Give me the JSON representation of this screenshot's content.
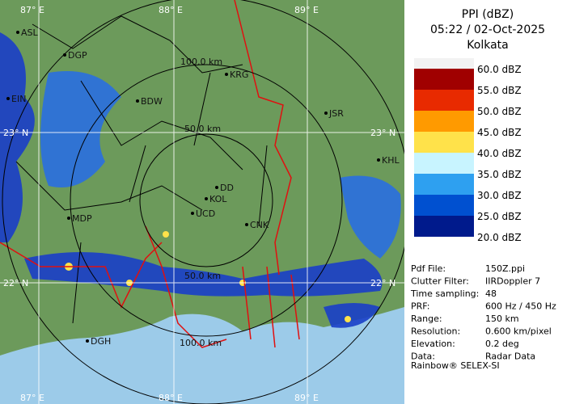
{
  "header": {
    "product": "PPI (dBZ)",
    "time": "05:22 / 02-Oct-2025",
    "site": "Kolkata"
  },
  "legend": [
    {
      "label": "60.0 dBZ",
      "color": "#f2f2f2"
    },
    {
      "label": "55.0 dBZ",
      "color": "#a00000"
    },
    {
      "label": "50.0 dBZ",
      "color": "#e82a00"
    },
    {
      "label": "45.0 dBZ",
      "color": "#ff9a00"
    },
    {
      "label": "40.0 dBZ",
      "color": "#ffe24a"
    },
    {
      "label": "35.0 dBZ",
      "color": "#c8f4ff"
    },
    {
      "label": "30.0 dBZ",
      "color": "#2ea0f0"
    },
    {
      "label": "25.0 dBZ",
      "color": "#0050d0"
    },
    {
      "label": "20.0 dBZ",
      "color": "#001a8c"
    }
  ],
  "info": [
    {
      "label": "Pdf File:",
      "value": "150Z.ppi"
    },
    {
      "label": "Clutter Filter:",
      "value": "IIRDoppler 7"
    },
    {
      "label": "Time sampling:",
      "value": "48"
    },
    {
      "label": "PRF:",
      "value": "600 Hz / 450 Hz"
    },
    {
      "label": "Range:",
      "value": "150 km"
    },
    {
      "label": "Resolution:",
      "value": "0.600 km/pixel"
    },
    {
      "label": "Elevation:",
      "value": "0.2 deg"
    },
    {
      "label": "Data:",
      "value": "Radar Data"
    }
  ],
  "footer": "Rainbow® SELEX-SI",
  "map": {
    "longitudes": [
      "87° E",
      "88° E",
      "89° E"
    ],
    "latitudes": [
      "23° N",
      "22° N"
    ],
    "ranges": [
      "100.0 km",
      "50.0 km",
      "50.0 km",
      "100.0 km"
    ],
    "places": [
      "ASL",
      "DGP",
      "EIN",
      "BDW",
      "KRG",
      "JSR",
      "KHL",
      "DD",
      "KOL",
      "UCD",
      "CNK",
      "MDP",
      "DGH"
    ]
  }
}
